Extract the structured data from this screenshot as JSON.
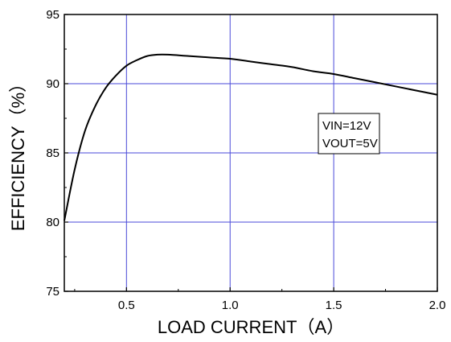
{
  "chart_data": {
    "type": "line",
    "title": "",
    "xlabel": "LOAD CURRENT（A）",
    "ylabel": "EFFICIENCY（%）",
    "xlim": [
      0.2,
      2.0
    ],
    "ylim": [
      75,
      95
    ],
    "xticks": [
      "0.5",
      "1.0",
      "1.5",
      "2.0"
    ],
    "yticks": [
      "75",
      "80",
      "85",
      "90",
      "95"
    ],
    "grid": true,
    "series": [
      {
        "x": [
          0.2,
          0.25,
          0.3,
          0.35,
          0.4,
          0.45,
          0.5,
          0.55,
          0.6,
          0.65,
          0.7,
          0.8,
          0.9,
          1.0,
          1.1,
          1.2,
          1.3,
          1.4,
          1.5,
          1.6,
          1.7,
          1.8,
          1.9,
          2.0
        ],
        "y": [
          80.1,
          83.8,
          86.6,
          88.4,
          89.7,
          90.6,
          91.3,
          91.7,
          92.0,
          92.1,
          92.1,
          92.0,
          91.9,
          91.8,
          91.6,
          91.4,
          91.2,
          90.9,
          90.7,
          90.4,
          90.1,
          89.8,
          89.5,
          89.2
        ]
      }
    ],
    "annotations": [
      "VIN=12V",
      "VOUT=5V"
    ]
  },
  "colors": {
    "grid": "#4a4ad8",
    "line": "#000000",
    "frame": "#000000"
  }
}
